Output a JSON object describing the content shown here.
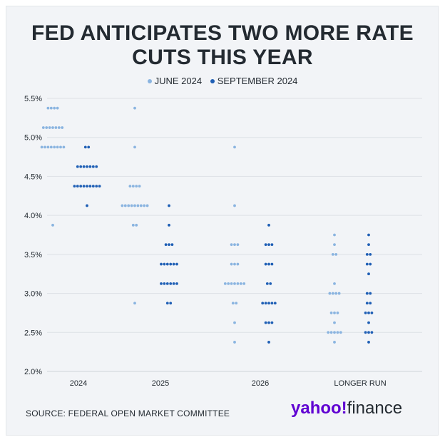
{
  "chart_data": {
    "type": "scatter",
    "title": "FED ANTICIPATES TWO MORE RATE CUTS THIS YEAR",
    "categories": [
      "2024",
      "2025",
      "2026",
      "LONGER RUN"
    ],
    "ylim": [
      2.0,
      5.5
    ],
    "yticks": [
      2.0,
      2.5,
      3.0,
      3.5,
      4.0,
      4.5,
      5.0,
      5.5
    ],
    "ytick_labels": [
      "2.0%",
      "2.5%",
      "3.0%",
      "3.5%",
      "4.0%",
      "4.5%",
      "5.0%",
      "5.5%"
    ],
    "grid": true,
    "legend": "top-center",
    "series": [
      {
        "name": "JUNE 2024",
        "color": "#8ab4e0",
        "points": [
          {
            "x": "2024",
            "y": 5.375,
            "count": 4
          },
          {
            "x": "2024",
            "y": 5.125,
            "count": 7
          },
          {
            "x": "2024",
            "y": 4.875,
            "count": 8
          },
          {
            "x": "2024",
            "y": 3.875,
            "count": 1
          },
          {
            "x": "2025",
            "y": 5.375,
            "count": 1
          },
          {
            "x": "2025",
            "y": 4.875,
            "count": 1
          },
          {
            "x": "2025",
            "y": 4.375,
            "count": 4
          },
          {
            "x": "2025",
            "y": 4.125,
            "count": 9
          },
          {
            "x": "2025",
            "y": 3.875,
            "count": 2
          },
          {
            "x": "2025",
            "y": 2.875,
            "count": 1
          },
          {
            "x": "2026",
            "y": 4.875,
            "count": 1
          },
          {
            "x": "2026",
            "y": 4.125,
            "count": 1
          },
          {
            "x": "2026",
            "y": 3.625,
            "count": 3
          },
          {
            "x": "2026",
            "y": 3.375,
            "count": 3
          },
          {
            "x": "2026",
            "y": 3.125,
            "count": 7
          },
          {
            "x": "2026",
            "y": 2.875,
            "count": 2
          },
          {
            "x": "2026",
            "y": 2.625,
            "count": 1
          },
          {
            "x": "2026",
            "y": 2.375,
            "count": 1
          },
          {
            "x": "LONGER RUN",
            "y": 3.75,
            "count": 1
          },
          {
            "x": "LONGER RUN",
            "y": 3.625,
            "count": 1
          },
          {
            "x": "LONGER RUN",
            "y": 3.5,
            "count": 2
          },
          {
            "x": "LONGER RUN",
            "y": 3.125,
            "count": 1
          },
          {
            "x": "LONGER RUN",
            "y": 3.0,
            "count": 4
          },
          {
            "x": "LONGER RUN",
            "y": 2.75,
            "count": 3
          },
          {
            "x": "LONGER RUN",
            "y": 2.625,
            "count": 1
          },
          {
            "x": "LONGER RUN",
            "y": 2.5,
            "count": 5
          },
          {
            "x": "LONGER RUN",
            "y": 2.375,
            "count": 1
          }
        ]
      },
      {
        "name": "SEPTEMBER 2024",
        "color": "#1f5fb5",
        "points": [
          {
            "x": "2024",
            "y": 4.875,
            "count": 2
          },
          {
            "x": "2024",
            "y": 4.625,
            "count": 7
          },
          {
            "x": "2024",
            "y": 4.375,
            "count": 9
          },
          {
            "x": "2024",
            "y": 4.125,
            "count": 1
          },
          {
            "x": "2025",
            "y": 4.125,
            "count": 1
          },
          {
            "x": "2025",
            "y": 3.875,
            "count": 1
          },
          {
            "x": "2025",
            "y": 3.625,
            "count": 3
          },
          {
            "x": "2025",
            "y": 3.375,
            "count": 6
          },
          {
            "x": "2025",
            "y": 3.125,
            "count": 6
          },
          {
            "x": "2025",
            "y": 2.875,
            "count": 2
          },
          {
            "x": "2026",
            "y": 3.875,
            "count": 1
          },
          {
            "x": "2026",
            "y": 3.625,
            "count": 3
          },
          {
            "x": "2026",
            "y": 3.375,
            "count": 3
          },
          {
            "x": "2026",
            "y": 3.125,
            "count": 2
          },
          {
            "x": "2026",
            "y": 2.875,
            "count": 5
          },
          {
            "x": "2026",
            "y": 2.625,
            "count": 3
          },
          {
            "x": "2026",
            "y": 2.375,
            "count": 1
          },
          {
            "x": "LONGER RUN",
            "y": 3.75,
            "count": 1
          },
          {
            "x": "LONGER RUN",
            "y": 3.625,
            "count": 1
          },
          {
            "x": "LONGER RUN",
            "y": 3.5,
            "count": 2
          },
          {
            "x": "LONGER RUN",
            "y": 3.375,
            "count": 2
          },
          {
            "x": "LONGER RUN",
            "y": 3.25,
            "count": 1
          },
          {
            "x": "LONGER RUN",
            "y": 3.0,
            "count": 2
          },
          {
            "x": "LONGER RUN",
            "y": 2.875,
            "count": 2
          },
          {
            "x": "LONGER RUN",
            "y": 2.75,
            "count": 3
          },
          {
            "x": "LONGER RUN",
            "y": 2.625,
            "count": 1
          },
          {
            "x": "LONGER RUN",
            "y": 2.5,
            "count": 3
          },
          {
            "x": "LONGER RUN",
            "y": 2.375,
            "count": 1
          }
        ]
      }
    ]
  },
  "legend": {
    "june_label": "JUNE 2024",
    "september_label": "SEPTEMBER 2024"
  },
  "source_text": "SOURCE: FEDERAL OPEN MARKET COMMITTEE",
  "logo": {
    "yahoo_text": "yahoo!",
    "finance_text": "finance"
  }
}
